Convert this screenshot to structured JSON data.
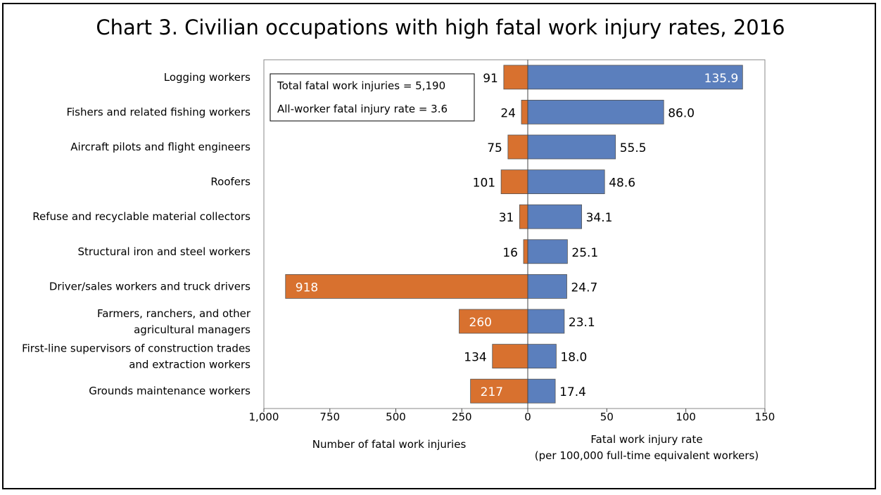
{
  "chart_data": {
    "type": "bar",
    "title": "Chart 3. Civilian occupations with high fatal work injury rates, 2016",
    "categories": [
      [
        "Logging workers"
      ],
      [
        "Fishers and related fishing workers"
      ],
      [
        "Aircraft pilots and flight engineers"
      ],
      [
        "Roofers"
      ],
      [
        "Refuse and recyclable material collectors"
      ],
      [
        "Structural iron and steel workers"
      ],
      [
        "Driver/sales workers and truck drivers"
      ],
      [
        "Farmers, ranchers, and other",
        "agricultural managers"
      ],
      [
        "First-line supervisors of construction trades",
        "and extraction workers"
      ],
      [
        "Grounds maintenance workers"
      ]
    ],
    "series": [
      {
        "name": "Number of fatal work injuries",
        "values": [
          91,
          24,
          75,
          101,
          31,
          16,
          918,
          260,
          134,
          217
        ],
        "labels": [
          "91",
          "24",
          "75",
          "101",
          "31",
          "16",
          "918",
          "260",
          "134",
          "217"
        ],
        "color": "#d8712f"
      },
      {
        "name": "Fatal work injury rate",
        "values": [
          135.9,
          86.0,
          55.5,
          48.6,
          34.1,
          25.1,
          24.7,
          23.1,
          18.0,
          17.4
        ],
        "labels": [
          "135.9",
          "86.0",
          "55.5",
          "48.6",
          "34.1",
          "25.1",
          "24.7",
          "23.1",
          "18.0",
          "17.4"
        ],
        "color": "#5b7fbd"
      }
    ],
    "left_axis": {
      "label": "Number of fatal work injuries",
      "range": [
        1000,
        0
      ],
      "ticks": [
        1000,
        750,
        500,
        250,
        0
      ],
      "tick_labels": [
        "1,000",
        "750",
        "500",
        "250",
        "0"
      ]
    },
    "right_axis": {
      "label_lines": [
        "Fatal work injury rate",
        "(per 100,000 full-time equivalent workers)"
      ],
      "range": [
        0,
        150
      ],
      "ticks": [
        50,
        100,
        150
      ],
      "tick_labels": [
        "50",
        "100",
        "150"
      ]
    },
    "annotation": {
      "lines": [
        "Total fatal work injuries = 5,190",
        "All-worker fatal injury rate = 3.6"
      ]
    },
    "grid": false,
    "legend": "none"
  }
}
